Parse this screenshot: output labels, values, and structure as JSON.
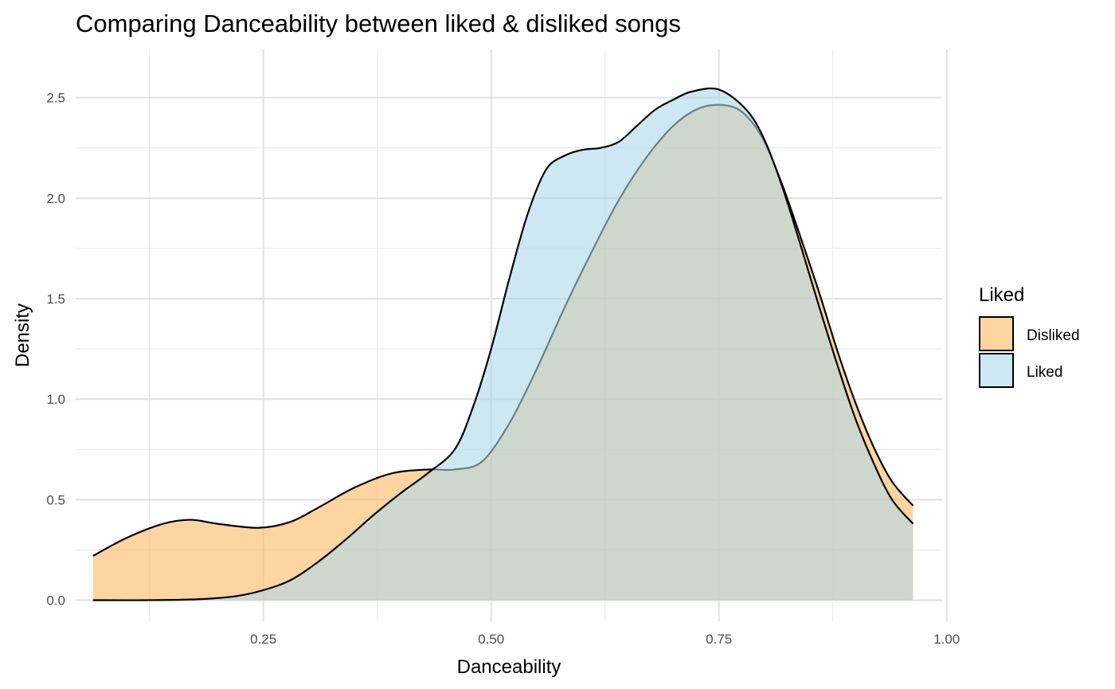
{
  "chart_data": {
    "type": "area",
    "title": "Comparing Danceability between liked & disliked songs",
    "xlabel": "Danceability",
    "ylabel": "Density",
    "xlim": [
      0.044,
      0.995
    ],
    "ylim": [
      -0.105,
      2.74
    ],
    "x_ticks": [
      0.25,
      0.5,
      0.75,
      1.0
    ],
    "x_tick_labels": [
      "0.25",
      "0.50",
      "0.75",
      "1.00"
    ],
    "x_minor_ticks": [
      0.125,
      0.375,
      0.625,
      0.875
    ],
    "y_ticks": [
      0.0,
      0.5,
      1.0,
      1.5,
      2.0,
      2.5
    ],
    "y_tick_labels": [
      "0.0",
      "0.5",
      "1.0",
      "1.5",
      "2.0",
      "2.5"
    ],
    "y_minor_ticks": [
      0.25,
      0.75,
      1.25,
      1.75,
      2.25
    ],
    "grid": true,
    "legend": {
      "title": "Liked",
      "position": "right",
      "entries": [
        {
          "label": "Disliked",
          "color": "#fdb863"
        },
        {
          "label": "Liked",
          "color": "#abd9e9"
        }
      ]
    },
    "series": [
      {
        "name": "Disliked",
        "fill": "#fdb863",
        "x": [
          0.063,
          0.1,
          0.14,
          0.17,
          0.2,
          0.245,
          0.28,
          0.31,
          0.35,
          0.39,
          0.43,
          0.46,
          0.49,
          0.52,
          0.55,
          0.58,
          0.61,
          0.64,
          0.67,
          0.7,
          0.73,
          0.76,
          0.78,
          0.8,
          0.82,
          0.84,
          0.86,
          0.88,
          0.9,
          0.92,
          0.94,
          0.963
        ],
        "values": [
          0.22,
          0.31,
          0.38,
          0.4,
          0.38,
          0.36,
          0.39,
          0.46,
          0.56,
          0.63,
          0.65,
          0.65,
          0.69,
          0.88,
          1.15,
          1.45,
          1.73,
          1.99,
          2.2,
          2.36,
          2.45,
          2.46,
          2.41,
          2.28,
          2.06,
          1.8,
          1.53,
          1.24,
          0.98,
          0.76,
          0.59,
          0.47
        ]
      },
      {
        "name": "Liked",
        "fill": "#abd9e9",
        "x": [
          0.063,
          0.12,
          0.18,
          0.22,
          0.25,
          0.28,
          0.31,
          0.34,
          0.37,
          0.4,
          0.43,
          0.46,
          0.48,
          0.5,
          0.52,
          0.54,
          0.56,
          0.58,
          0.6,
          0.62,
          0.64,
          0.66,
          0.68,
          0.7,
          0.72,
          0.75,
          0.78,
          0.8,
          0.82,
          0.84,
          0.86,
          0.88,
          0.9,
          0.92,
          0.94,
          0.963
        ],
        "values": [
          0.0,
          0.0,
          0.005,
          0.02,
          0.05,
          0.1,
          0.19,
          0.3,
          0.42,
          0.53,
          0.63,
          0.75,
          0.96,
          1.25,
          1.6,
          1.92,
          2.14,
          2.21,
          2.24,
          2.25,
          2.28,
          2.36,
          2.44,
          2.49,
          2.53,
          2.54,
          2.44,
          2.29,
          2.05,
          1.76,
          1.46,
          1.17,
          0.9,
          0.68,
          0.5,
          0.38
        ]
      }
    ]
  }
}
